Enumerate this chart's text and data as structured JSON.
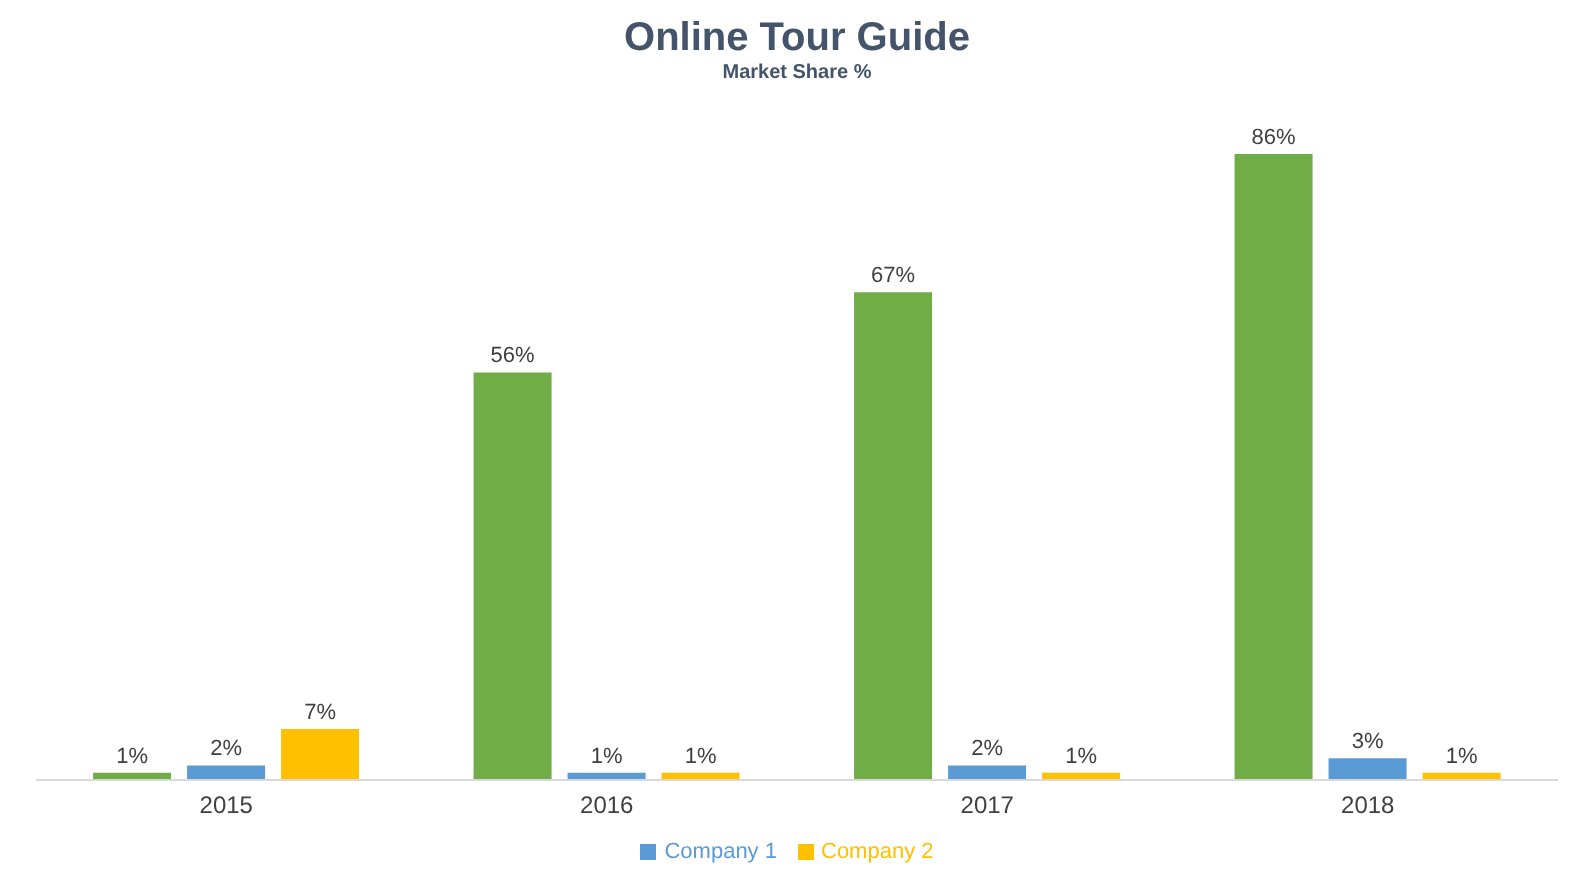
{
  "chart_data": {
    "type": "bar",
    "title": "Online Tour Guide",
    "subtitle": "Market Share %",
    "categories": [
      "2015",
      "2016",
      "2017",
      "2018"
    ],
    "series": [
      {
        "color": "#70ad47",
        "values": [
          1,
          56,
          67,
          86
        ],
        "value_labels": [
          "1%",
          "56%",
          "67%",
          "86%"
        ]
      },
      {
        "name": "Company 1",
        "color": "#5b9bd5",
        "values": [
          2,
          1,
          2,
          3
        ],
        "value_labels": [
          "2%",
          "1%",
          "2%",
          "3%"
        ]
      },
      {
        "name": "Company 2",
        "color": "#ffc000",
        "values": [
          7,
          1,
          1,
          1
        ],
        "value_labels": [
          "7%",
          "1%",
          "1%",
          "1%"
        ]
      }
    ],
    "legend": "bottom",
    "grid": false
  }
}
